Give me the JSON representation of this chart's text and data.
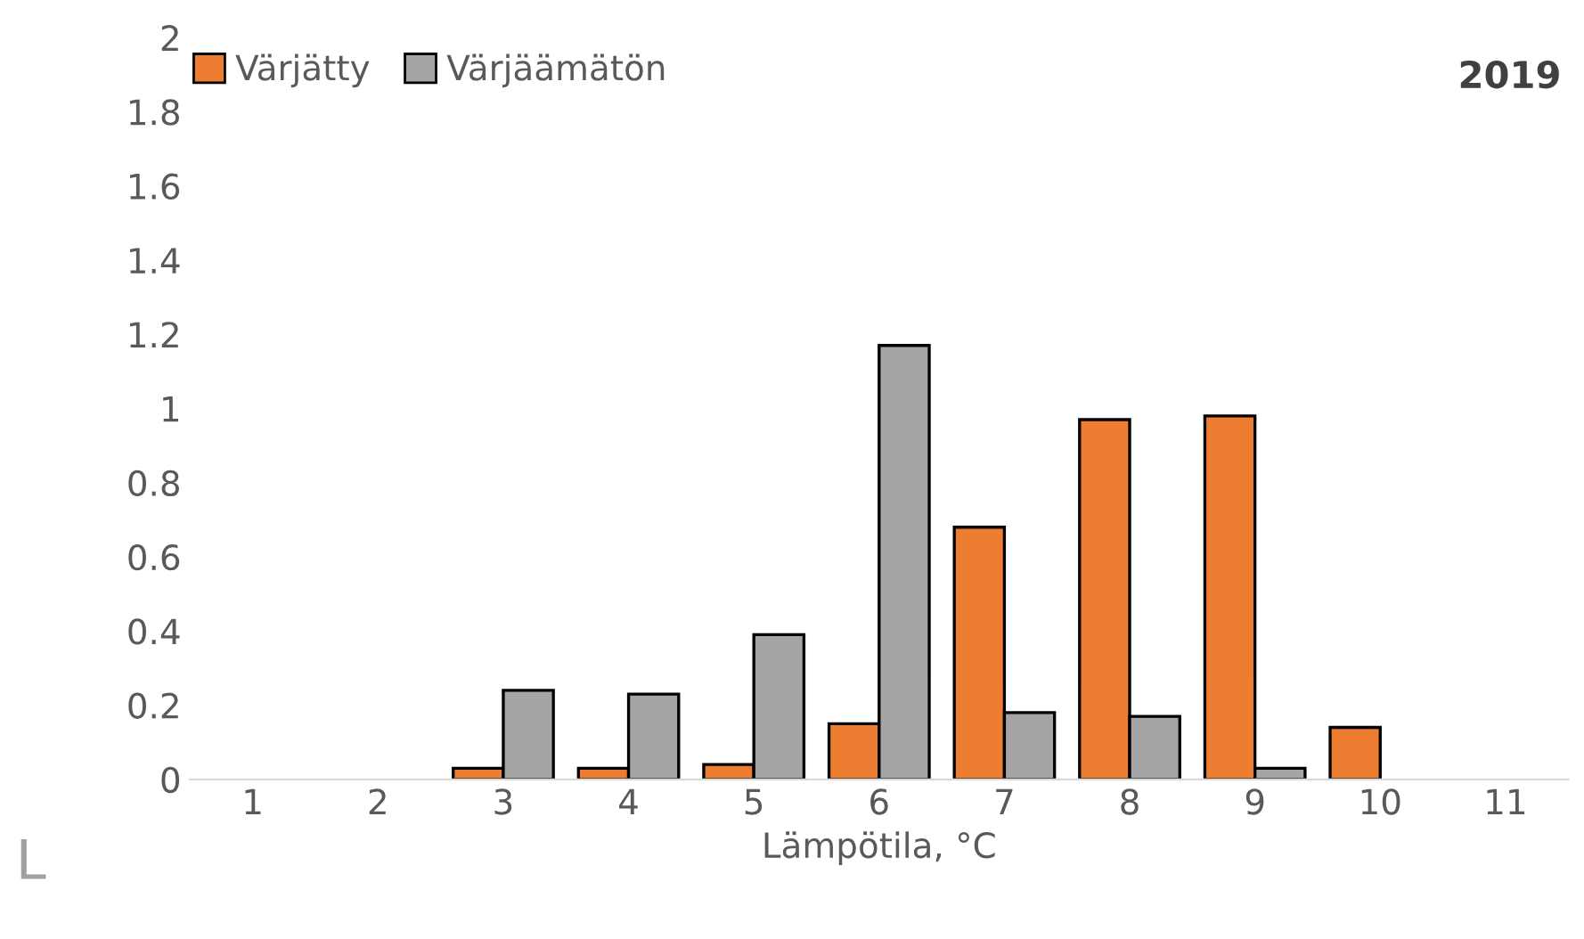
{
  "chart_data": {
    "type": "bar",
    "xlabel": "Lämpötila, °C",
    "annotations": [
      "2019",
      "L"
    ],
    "categories": [
      "1",
      "2",
      "3",
      "4",
      "5",
      "6",
      "7",
      "8",
      "9",
      "10",
      "11"
    ],
    "series": [
      {
        "name": "Värjätty",
        "color": "#ed7d31",
        "values": [
          0,
          0,
          0.03,
          0.03,
          0.04,
          0.15,
          0.68,
          0.97,
          0.98,
          0.14,
          0
        ]
      },
      {
        "name": "Värjäämätön",
        "color": "#a5a5a5",
        "values": [
          0,
          0,
          0.24,
          0.23,
          0.39,
          1.17,
          0.18,
          0.17,
          0.03,
          0,
          0
        ]
      }
    ],
    "ylim": [
      0,
      2
    ],
    "yticks": [
      0,
      0.2,
      0.4,
      0.6,
      0.8,
      {
        "value": 1,
        "label": "1"
      },
      1.2,
      1.4,
      1.6,
      1.8,
      {
        "value": 2,
        "label": "2"
      }
    ],
    "grid": false,
    "legend": "top left"
  }
}
